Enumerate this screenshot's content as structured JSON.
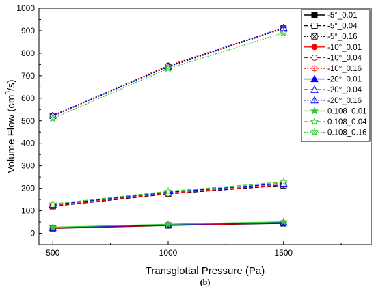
{
  "chart_data": {
    "type": "line",
    "title": "",
    "xlabel": "Transglottal Pressure (Pa)",
    "ylabel_main": "Volume Flow (cm",
    "ylabel_sup": "3",
    "ylabel_end": "/s)",
    "caption": "(b)",
    "xlim": [
      440,
      1880
    ],
    "ylim": [
      -50,
      1000
    ],
    "xticks": [
      500,
      1000,
      1500
    ],
    "yticks": [
      0,
      100,
      200,
      300,
      400,
      500,
      600,
      700,
      800,
      900,
      1000
    ],
    "x": [
      500,
      1000,
      1500
    ],
    "grid": false,
    "legend_position": "top-right",
    "series": [
      {
        "name": "-5°_0.01",
        "values": [
          22,
          35,
          44
        ],
        "color": "#000000",
        "dash": "solid",
        "marker": "square",
        "fill": true
      },
      {
        "name": "-5°_0.04",
        "values": [
          120,
          175,
          213
        ],
        "color": "#000000",
        "dash": "dash",
        "marker": "square",
        "fill": false
      },
      {
        "name": "-5°_0.16",
        "values": [
          522,
          740,
          910
        ],
        "color": "#000000",
        "dash": "dot",
        "marker": "squarex",
        "fill": false
      },
      {
        "name": "-10°_0.01",
        "values": [
          23,
          36,
          46
        ],
        "color": "#ff0000",
        "dash": "solid",
        "marker": "circle",
        "fill": true
      },
      {
        "name": "-10°_0.04",
        "values": [
          122,
          177,
          216
        ],
        "color": "#ff0000",
        "dash": "dash",
        "marker": "circle",
        "fill": false
      },
      {
        "name": "-10°_0.16",
        "values": [
          520,
          745,
          912
        ],
        "color": "#ff0000",
        "dash": "dot",
        "marker": "circleplus",
        "fill": false
      },
      {
        "name": "-20°_0.01",
        "values": [
          25,
          38,
          49
        ],
        "color": "#0000ff",
        "dash": "solid",
        "marker": "triangle",
        "fill": true
      },
      {
        "name": "-20°_0.04",
        "values": [
          127,
          182,
          222
        ],
        "color": "#0000ff",
        "dash": "dash",
        "marker": "triangle",
        "fill": false
      },
      {
        "name": "-20°_0.16",
        "values": [
          524,
          742,
          913
        ],
        "color": "#0000ff",
        "dash": "dot",
        "marker": "triangleplus",
        "fill": false
      },
      {
        "name": "0.108_0.01",
        "values": [
          27,
          40,
          51
        ],
        "color": "#33cc33",
        "dash": "solid",
        "marker": "star",
        "fill": true
      },
      {
        "name": "0.108_0.04",
        "values": [
          130,
          186,
          228
        ],
        "color": "#33cc33",
        "dash": "dash",
        "marker": "star",
        "fill": false
      },
      {
        "name": "0.108_0.16",
        "values": [
          510,
          732,
          890
        ],
        "color": "#33cc33",
        "dash": "dot",
        "marker": "starx",
        "fill": false
      }
    ]
  }
}
